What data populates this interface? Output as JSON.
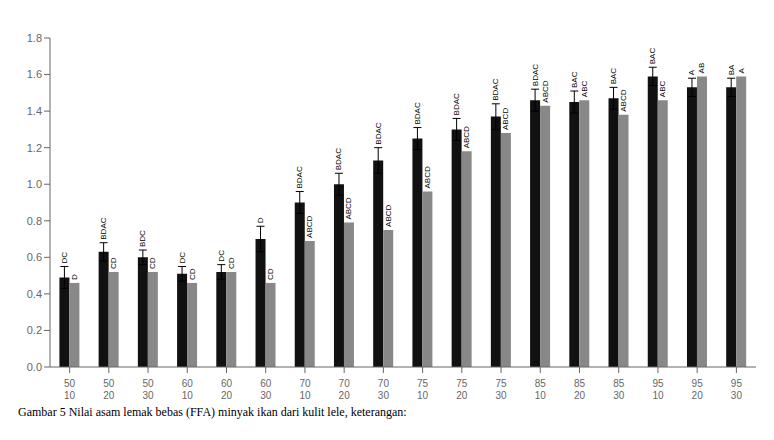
{
  "chart_data": {
    "type": "bar",
    "caption": "Gambar 5  Nilai asam lemak bebas (FFA) minyak ikan dari kulit lele, keterangan:",
    "categories": [
      "50\n10",
      "50\n20",
      "50\n30",
      "60\n10",
      "60\n20",
      "60\n30",
      "70\n10",
      "70\n20",
      "70\n30",
      "75\n10",
      "75\n20",
      "75\n30",
      "85\n10",
      "85\n20",
      "85\n30",
      "95\n10",
      "95\n20",
      "95\n30"
    ],
    "series": [
      {
        "color": "#111111",
        "values": [
          0.49,
          0.63,
          0.6,
          0.51,
          0.52,
          0.7,
          0.9,
          1.0,
          1.13,
          1.25,
          1.3,
          1.37,
          1.46,
          1.45,
          1.47,
          1.59,
          1.53,
          1.53
        ],
        "error": [
          0.06,
          0.05,
          0.04,
          0.04,
          0.04,
          0.07,
          0.06,
          0.06,
          0.07,
          0.06,
          0.06,
          0.07,
          0.06,
          0.06,
          0.06,
          0.05,
          0.05,
          0.05
        ],
        "labels": [
          "DC",
          "BDAC",
          "BDC",
          "DC",
          "DC",
          "D",
          "BDAC",
          "BDAC",
          "BDAC",
          "BDAC",
          "BDAC",
          "BDAC",
          "BDAC",
          "BAC",
          "BAC",
          "BAC",
          "A",
          "BA"
        ]
      },
      {
        "color": "#888888",
        "values": [
          0.46,
          0.52,
          0.52,
          0.46,
          0.52,
          0.46,
          0.69,
          0.79,
          0.75,
          0.96,
          1.18,
          1.28,
          1.43,
          1.46,
          1.38,
          1.46,
          1.59,
          1.59
        ],
        "labels": [
          "D",
          "CD",
          "CD",
          "CD",
          "CD",
          "CD",
          "ABCD",
          "ABCD",
          "ABCD",
          "ABCD",
          "ABCD",
          "ABCD",
          "ABCD",
          "ABC",
          "ABCD",
          "ABC",
          "AB",
          "A"
        ]
      }
    ],
    "ylim": [
      0,
      1.8
    ],
    "yticks": [
      {
        "value": 0,
        "label": "0.0"
      },
      0.2,
      0.4,
      0.6,
      0.8,
      {
        "value": 1,
        "label": "1.0"
      },
      1.2,
      1.4,
      1.6,
      1.8
    ],
    "grid": false
  }
}
